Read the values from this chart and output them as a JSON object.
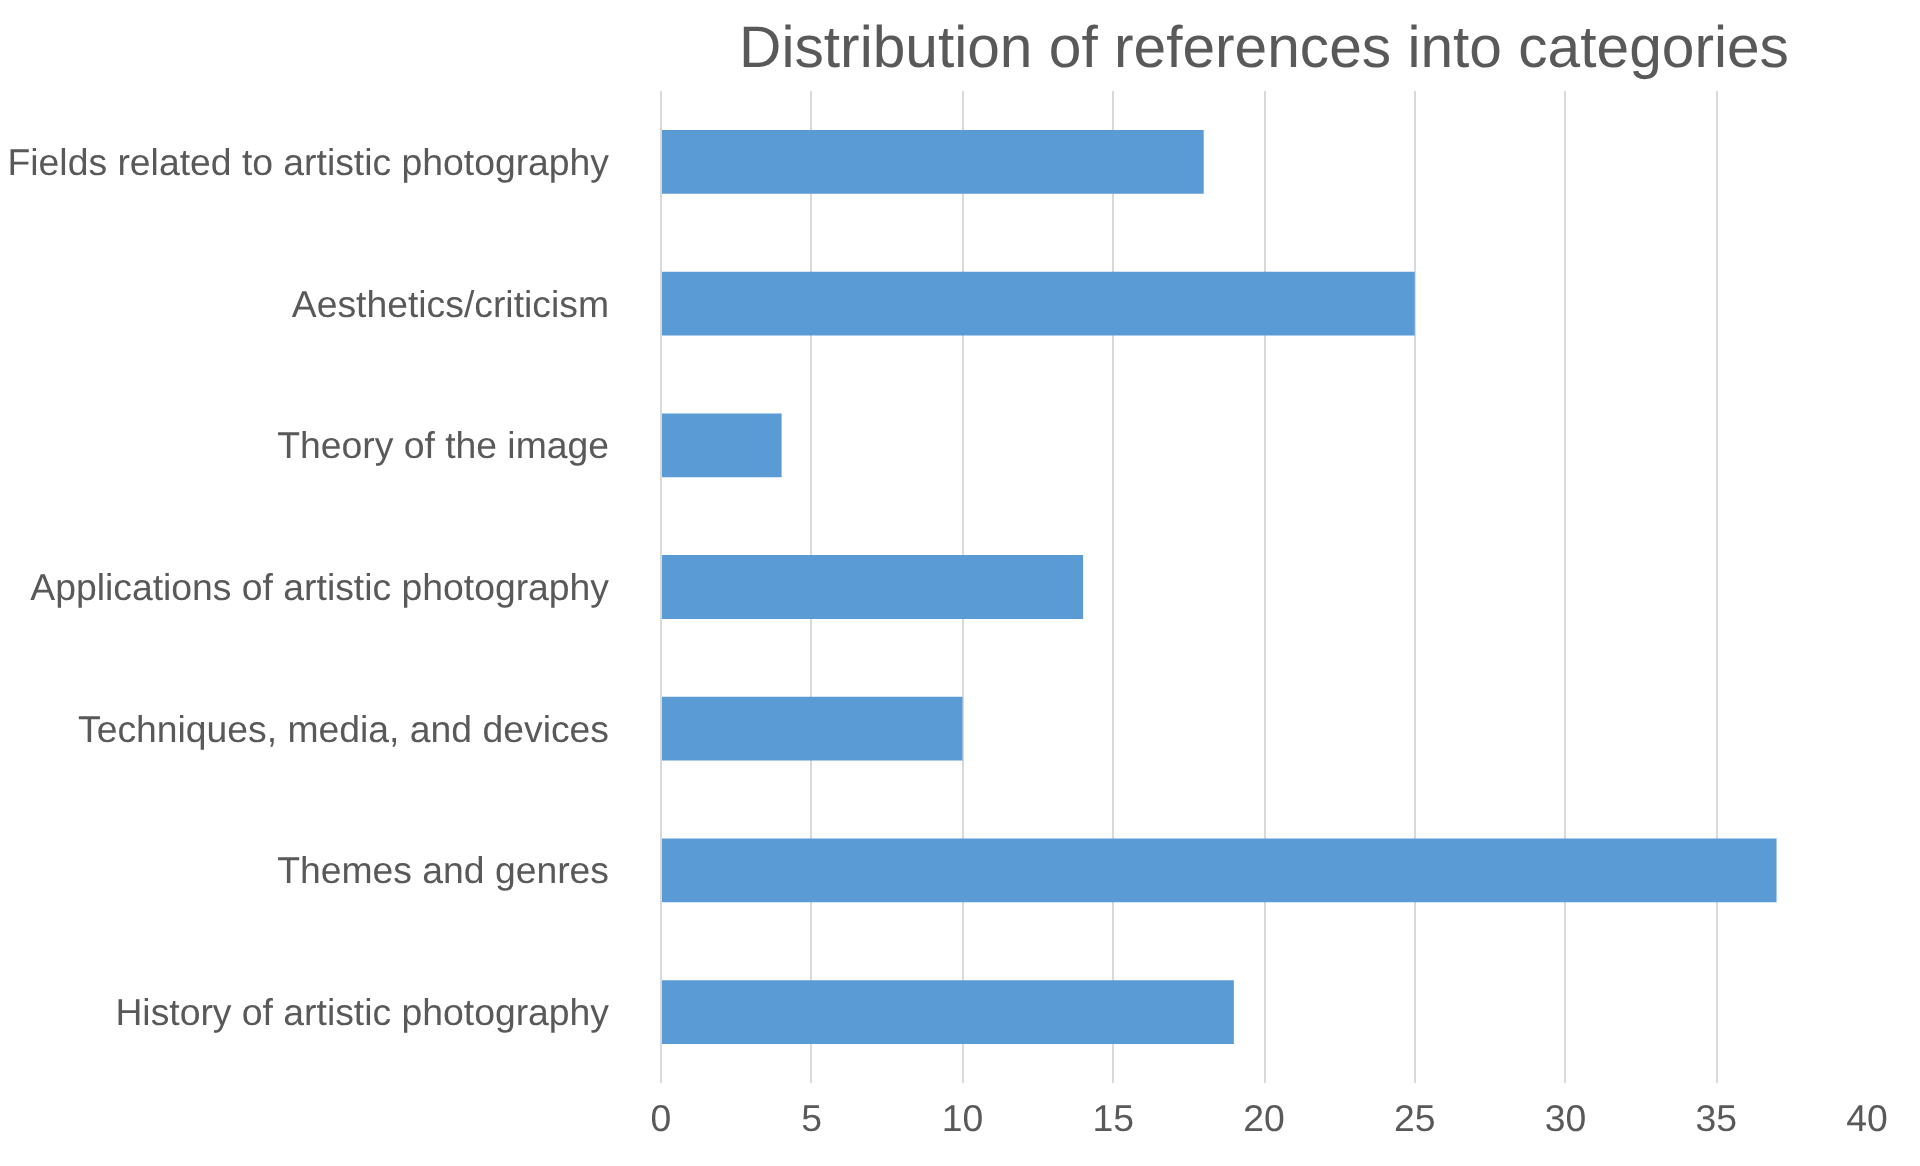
{
  "chart_data": {
    "type": "bar",
    "orientation": "horizontal",
    "title": "Distribution of references into categories",
    "categories": [
      "Fields related to artistic photography",
      "Aesthetics/criticism",
      "Theory of the image",
      "Applications of artistic photography",
      "Techniques, media, and devices",
      "Themes and genres",
      "History of artistic photography"
    ],
    "values": [
      18,
      25,
      4,
      14,
      10,
      37,
      19
    ],
    "color": "#5b9bd5",
    "xlim": [
      0,
      40
    ],
    "xticks": [
      0,
      5,
      10,
      15,
      20,
      25,
      30,
      35,
      40
    ],
    "grid": "x"
  }
}
